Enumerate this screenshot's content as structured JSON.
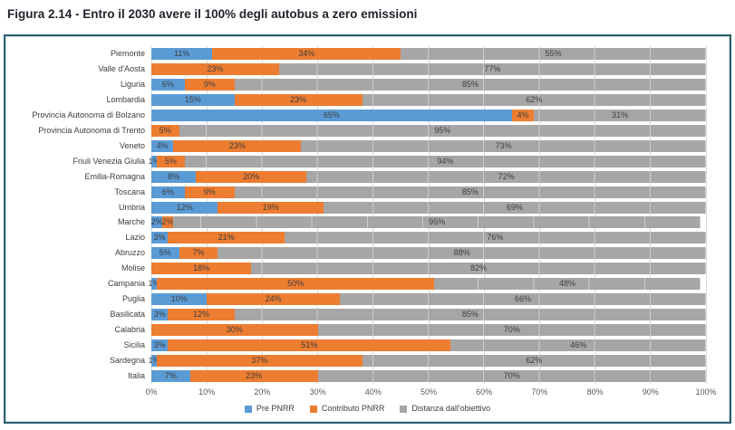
{
  "title": "Figura 2.14 - Entro il 2030 avere il 100% degli autobus a zero emissioni",
  "colors": {
    "pre_pnrr": "#5B9BD5",
    "contributo_pnrr": "#ED7D31",
    "distanza": "#A6A6A6",
    "gridline": "#D9D9D9",
    "frame_border": "#2e5e70",
    "label_text": "#3d3d3d",
    "axis_text": "#595959"
  },
  "legend": [
    {
      "label": "Pre PNRR",
      "color": "#5B9BD5"
    },
    {
      "label": "Contributo PNRR",
      "color": "#ED7D31"
    },
    {
      "label": "Distanza dall'obiettivo",
      "color": "#A6A6A6"
    }
  ],
  "x_axis": {
    "ticks": [
      "0%",
      "10%",
      "20%",
      "30%",
      "40%",
      "50%",
      "60%",
      "70%",
      "80%",
      "90%",
      "100%"
    ],
    "min": 0,
    "max": 100
  },
  "chart_data": {
    "type": "bar",
    "orientation": "horizontal",
    "stacked": true,
    "title": "Figura 2.14 - Entro il 2030 avere il 100% degli autobus a zero emissioni",
    "xlabel": "",
    "ylabel": "",
    "xlim": [
      0,
      100
    ],
    "grid": true,
    "legend_position": "bottom",
    "unit": "%",
    "categories": [
      "Piemonte",
      "Valle d'Aosta",
      "Liguria",
      "Lombardia",
      "Provincia Autonoma di Bolzano",
      "Provincia Autonoma di Trento",
      "Veneto",
      "Friuli Venezia Giulia",
      "Emilia-Romagna",
      "Toscana",
      "Umbria",
      "Marche",
      "Lazio",
      "Abruzzo",
      "Molise",
      "Campania",
      "Puglia",
      "Basilicata",
      "Calabria",
      "Sicilia",
      "Sardegna",
      "Italia"
    ],
    "series": [
      {
        "name": "Pre PNRR",
        "slug": "pre-pnrr",
        "color": "#5B9BD5",
        "values": [
          11,
          0,
          6,
          15,
          65,
          0,
          4,
          1,
          8,
          6,
          12,
          2,
          3,
          5,
          0,
          1,
          10,
          3,
          0,
          3,
          1,
          7
        ]
      },
      {
        "name": "Contributo PNRR",
        "slug": "contributo-pnrr",
        "color": "#ED7D31",
        "values": [
          34,
          23,
          9,
          23,
          4,
          5,
          23,
          5,
          20,
          9,
          19,
          2,
          21,
          7,
          18,
          50,
          24,
          12,
          30,
          51,
          37,
          23
        ]
      },
      {
        "name": "Distanza dall'obiettivo",
        "slug": "distanza-obiettivo",
        "color": "#A6A6A6",
        "values": [
          55,
          77,
          85,
          62,
          31,
          95,
          73,
          94,
          72,
          85,
          69,
          95,
          76,
          88,
          82,
          48,
          66,
          85,
          70,
          46,
          62,
          70
        ]
      }
    ]
  }
}
